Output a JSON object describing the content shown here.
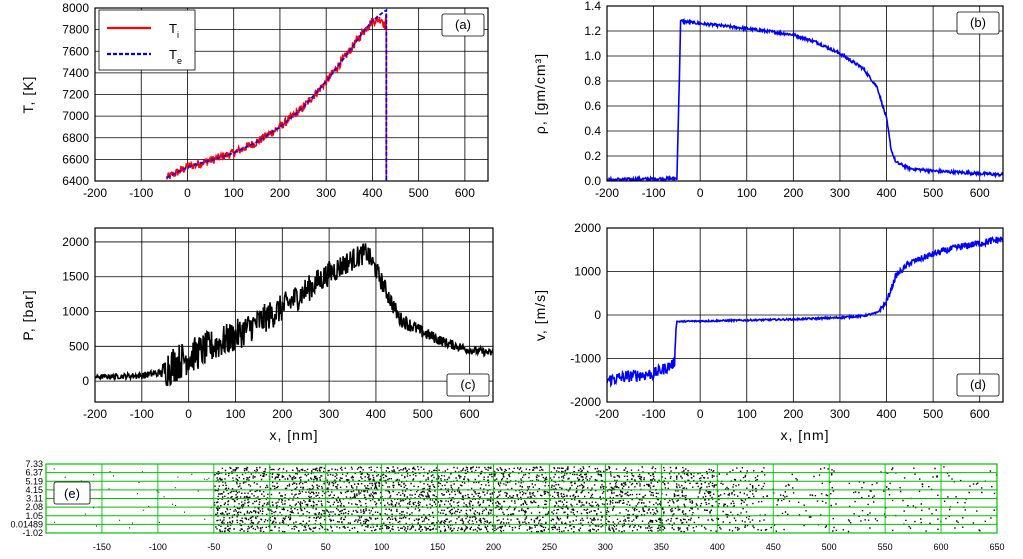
{
  "chart_data": [
    {
      "id": "a",
      "type": "line",
      "panel_label": "(a)",
      "ylabel": "T, [K]",
      "xlabel": "",
      "xlim": [
        -200,
        650
      ],
      "ylim": [
        6400,
        8000
      ],
      "xticks": [
        -200,
        -100,
        0,
        100,
        200,
        300,
        400,
        500,
        600
      ],
      "yticks": [
        6400,
        6600,
        6800,
        7000,
        7200,
        7400,
        7600,
        7800,
        8000
      ],
      "grid": true,
      "legend": {
        "placement": "top-left",
        "entries": [
          {
            "main": "T",
            "sub": "i",
            "color": "#ff0000",
            "dash": false
          },
          {
            "main": "T",
            "sub": "e",
            "color": "#0000ff",
            "dash": true
          }
        ]
      },
      "series": [
        {
          "name": "Ti",
          "color": "#ff0000",
          "noise": 40,
          "x": [
            -45,
            0,
            50,
            100,
            150,
            200,
            250,
            300,
            350,
            380,
            400,
            420,
            428,
            430,
            430
          ],
          "y": [
            6430,
            6530,
            6590,
            6660,
            6760,
            6900,
            7080,
            7320,
            7600,
            7780,
            7880,
            7900,
            7820,
            7950,
            6400
          ]
        },
        {
          "name": "Te",
          "color": "#0000ff",
          "noise": 0,
          "x": [
            -45,
            0,
            50,
            100,
            150,
            200,
            250,
            300,
            350,
            380,
            400,
            420,
            430,
            430
          ],
          "y": [
            6430,
            6530,
            6590,
            6660,
            6760,
            6900,
            7080,
            7320,
            7600,
            7780,
            7880,
            7950,
            7980,
            6400
          ]
        }
      ]
    },
    {
      "id": "b",
      "type": "line",
      "panel_label": "(b)",
      "ylabel": "ρ, [gm/cm³]",
      "xlabel": "",
      "xlim": [
        -200,
        650
      ],
      "ylim": [
        0,
        1.4
      ],
      "xticks": [
        -200,
        -100,
        0,
        100,
        200,
        300,
        400,
        500,
        600
      ],
      "yticks": [
        0.0,
        0.2,
        0.4,
        0.6,
        0.8,
        1.0,
        1.2,
        1.4
      ],
      "ytick_labels": [
        "0.0",
        "0.2",
        "0.4",
        "0.6",
        "0.8",
        "1.0",
        "1.2",
        "1.4"
      ],
      "grid": true,
      "series": [
        {
          "name": "rho",
          "color": "#0000ff",
          "noise": 0.012,
          "x": [
            -200,
            -50,
            -46,
            -42,
            0,
            100,
            200,
            250,
            300,
            350,
            380,
            400,
            410,
            420,
            450,
            500,
            650
          ],
          "y": [
            0.01,
            0.02,
            0.6,
            1.28,
            1.26,
            1.22,
            1.17,
            1.11,
            1.02,
            0.9,
            0.75,
            0.5,
            0.25,
            0.15,
            0.1,
            0.08,
            0.05
          ]
        }
      ]
    },
    {
      "id": "c",
      "type": "line",
      "panel_label": "(c)",
      "ylabel": "P, [bar]",
      "xlabel": "x, [nm]",
      "xlim": [
        -200,
        650
      ],
      "ylim": [
        -300,
        2200
      ],
      "xticks": [
        -200,
        -100,
        0,
        100,
        200,
        300,
        400,
        500,
        600
      ],
      "yticks": [
        0,
        500,
        1000,
        1500,
        2000
      ],
      "grid": true,
      "series": [
        {
          "name": "P",
          "color": "#000000",
          "noise": 180,
          "noise_scale": [
            [
              -200,
              0.15
            ],
            [
              -60,
              0.3
            ],
            [
              -45,
              1.6
            ],
            [
              0,
              1.4
            ],
            [
              300,
              1.0
            ],
            [
              400,
              0.8
            ],
            [
              450,
              0.6
            ],
            [
              550,
              0.4
            ],
            [
              650,
              0.3
            ]
          ],
          "x": [
            -200,
            -100,
            -60,
            -50,
            -45,
            0,
            50,
            100,
            150,
            200,
            250,
            300,
            350,
            380,
            400,
            450,
            500,
            550,
            600,
            650
          ],
          "y": [
            60,
            80,
            120,
            150,
            200,
            350,
            500,
            650,
            850,
            1050,
            1300,
            1550,
            1750,
            1850,
            1600,
            900,
            700,
            550,
            450,
            400
          ]
        }
      ]
    },
    {
      "id": "d",
      "type": "line",
      "panel_label": "(d)",
      "ylabel": "v, [m/s]",
      "xlabel": "x, [nm]",
      "xlim": [
        -200,
        650
      ],
      "ylim": [
        -2000,
        2000
      ],
      "xticks": [
        -200,
        -100,
        0,
        100,
        200,
        300,
        400,
        500,
        600
      ],
      "yticks": [
        -2000,
        -1000,
        0,
        1000,
        2000
      ],
      "grid": true,
      "series": [
        {
          "name": "v",
          "color": "#0000ff",
          "noise": 110,
          "noise_scale": [
            [
              -200,
              1.3
            ],
            [
              -60,
              1.2
            ],
            [
              -50,
              0.15
            ],
            [
              380,
              0.2
            ],
            [
              400,
              0.6
            ],
            [
              650,
              0.8
            ]
          ],
          "x": [
            -200,
            -150,
            -100,
            -70,
            -55,
            -52,
            -50,
            0,
            100,
            200,
            300,
            350,
            380,
            400,
            420,
            450,
            500,
            550,
            600,
            650
          ],
          "y": [
            -1500,
            -1400,
            -1350,
            -1200,
            -1100,
            -300,
            -150,
            -140,
            -120,
            -100,
            -60,
            -20,
            50,
            300,
            900,
            1200,
            1400,
            1550,
            1650,
            1750
          ]
        }
      ]
    },
    {
      "id": "e",
      "type": "scatter",
      "panel_label": "(e)",
      "xlim": [
        -200,
        650
      ],
      "xticks": [
        -150,
        -100,
        -50,
        0,
        50,
        100,
        150,
        200,
        250,
        300,
        350,
        400,
        450,
        500,
        550,
        600,
        650
      ],
      "ytick_labels": [
        "7.33",
        "6.37",
        "5.19",
        "4.15",
        "3.11",
        "2.08",
        "1.05",
        "0.01489",
        "-1.02"
      ],
      "grid_color": "#00c000",
      "density": [
        [
          -50,
          1.0
        ],
        [
          300,
          0.95
        ],
        [
          380,
          0.8
        ],
        [
          420,
          0.4
        ],
        [
          450,
          0.15
        ],
        [
          650,
          0.1
        ]
      ]
    }
  ]
}
